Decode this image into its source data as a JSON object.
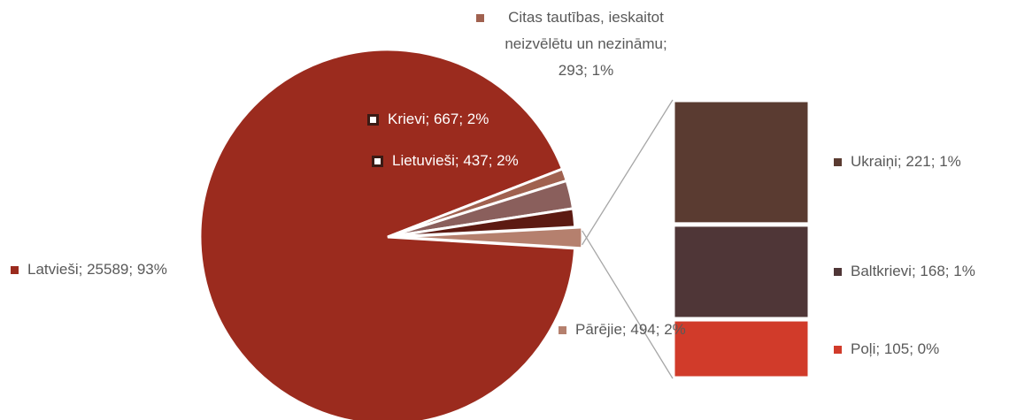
{
  "chart_data": {
    "type": "pie-of-bar",
    "pie": {
      "categories": [
        "Latvieši",
        "Citas tautības, ieskaitot neizvēlētu un nezināmu",
        "Krievi",
        "Lietuvieši",
        "Pārējie"
      ],
      "values": [
        25589,
        293,
        667,
        437,
        494
      ],
      "value_labels": [
        "93%",
        "1%",
        "2%",
        "2%",
        "2%"
      ],
      "colors": [
        "#9b2b1e",
        "#a0614f",
        "#8a5f5c",
        "#5c1a12",
        "#b5806e"
      ]
    },
    "bar": {
      "categories": [
        "Ukraiņi",
        "Baltkrievi",
        "Poļi"
      ],
      "values": [
        221,
        168,
        105
      ],
      "value_labels": [
        "1%",
        "1%",
        "0%"
      ],
      "colors": [
        "#5a3b31",
        "#4f3637",
        "#d13b2a"
      ]
    }
  }
}
